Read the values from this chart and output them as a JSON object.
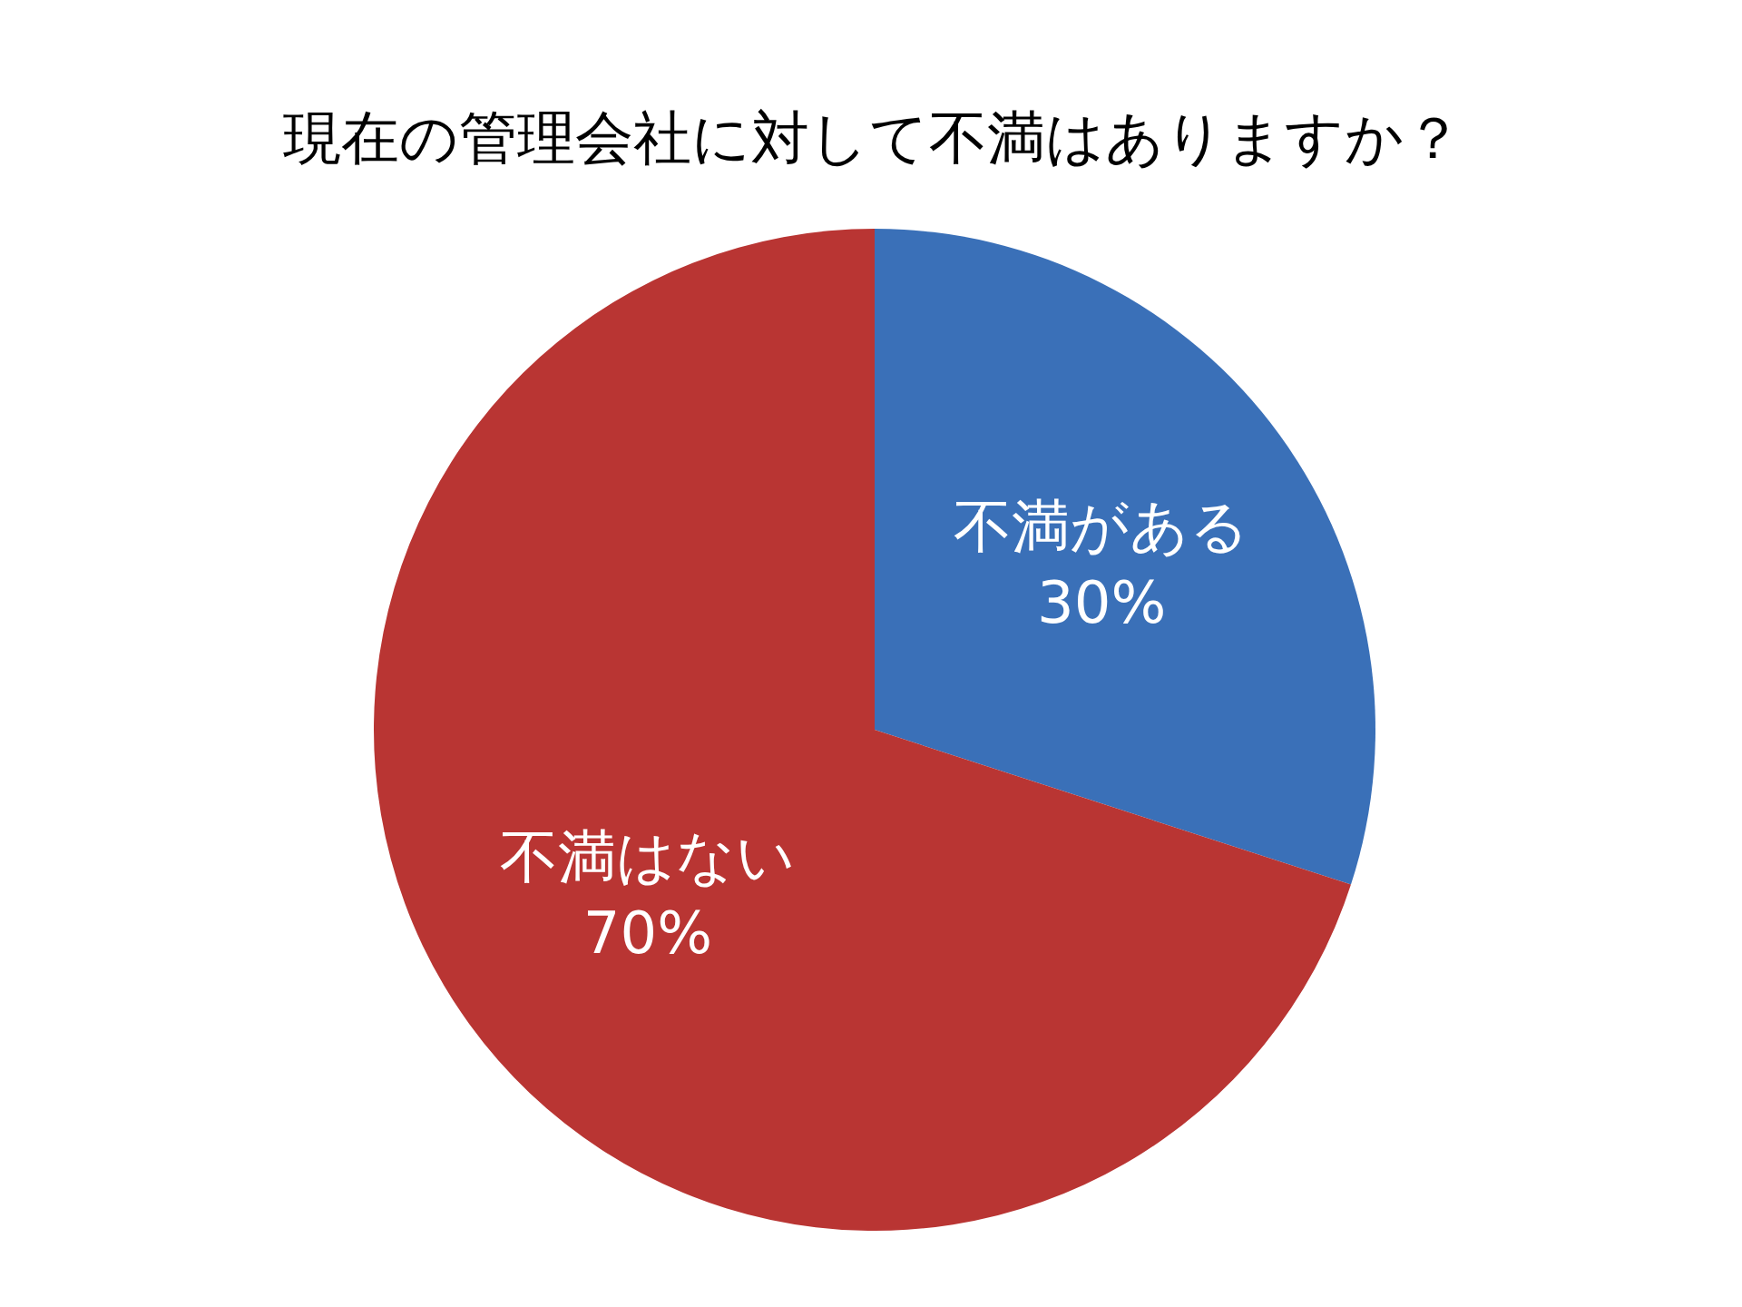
{
  "chart_data": {
    "type": "pie",
    "title": "現在の管理会社に対して不満はありますか？",
    "categories": [
      "不満がある",
      "不満はない"
    ],
    "values": [
      30,
      70
    ],
    "value_labels": [
      "30%",
      "70%"
    ],
    "colors": [
      "#3a70b8",
      "#b93533"
    ],
    "legend": false
  }
}
